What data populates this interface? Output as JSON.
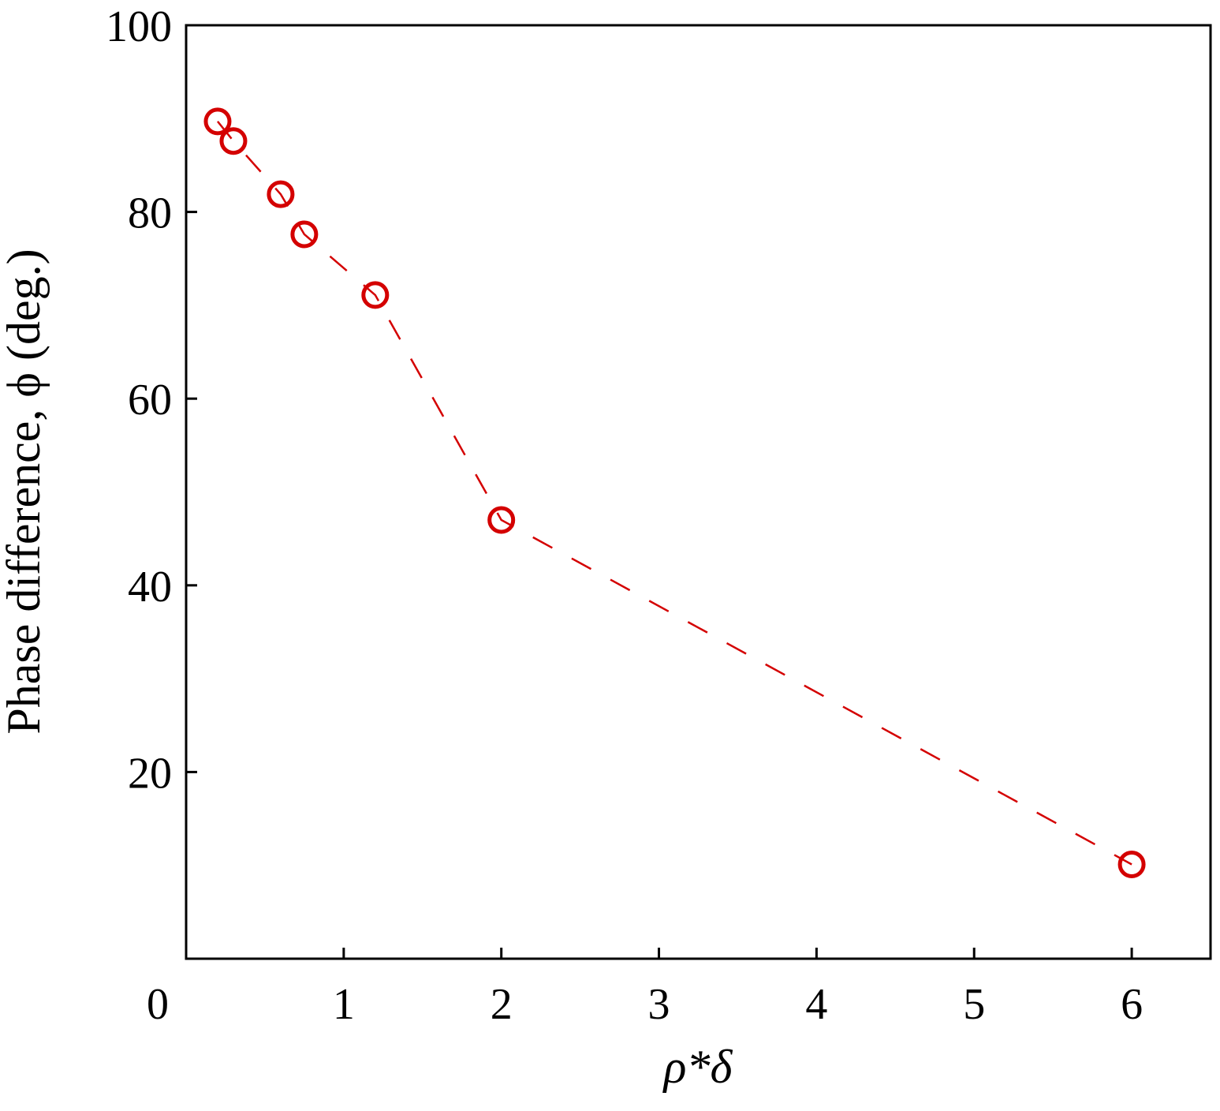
{
  "chart_data": {
    "type": "line",
    "x_label": "ρ*δ",
    "y_label": "Phase difference, ϕ (deg.)",
    "series": [
      {
        "color": "#d40000",
        "x": [
          0.2,
          0.3,
          0.6,
          0.75,
          1.2,
          2.0,
          6.0
        ],
        "values": [
          89.7,
          87.6,
          81.9,
          77.6,
          71.1,
          47.0,
          10.1
        ]
      }
    ],
    "xlim": [
      0,
      6.5
    ],
    "xticks": [
      0,
      1,
      2,
      3,
      4,
      5,
      6
    ],
    "ylim": [
      0,
      100
    ],
    "yticks": [
      20,
      40,
      60,
      80,
      100
    ],
    "line_style": "dashed",
    "marker": "open-circle",
    "grid": false
  }
}
